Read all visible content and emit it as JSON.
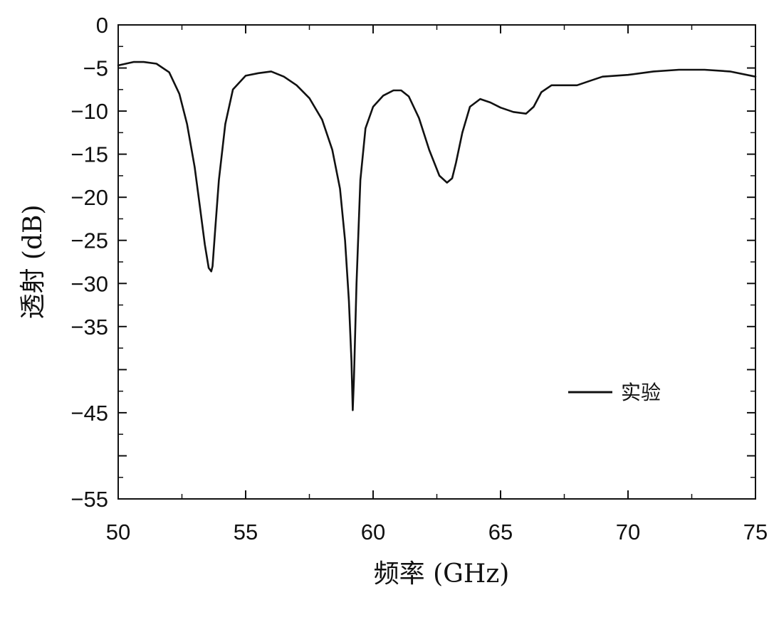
{
  "chart_data": {
    "type": "line",
    "xlabel": "频率 (GHz)",
    "ylabel": "透射 (dB)",
    "xlim": [
      50,
      75
    ],
    "ylim": [
      -55,
      0
    ],
    "x_ticks": [
      50,
      55,
      60,
      65,
      70,
      75
    ],
    "y_ticks": [
      0,
      -5,
      -10,
      -15,
      -20,
      -25,
      -30,
      -35,
      -45,
      -55
    ],
    "y_tick_labels": [
      "0",
      "−5",
      "−10",
      "−15",
      "−20",
      "−25",
      "−30",
      "−35",
      "−45",
      "−55"
    ],
    "grid": false,
    "legend_position": "right",
    "series": [
      {
        "name": "实验",
        "color": "#111111",
        "x": [
          50.0,
          50.3,
          50.6,
          51.0,
          51.5,
          52.0,
          52.4,
          52.7,
          53.0,
          53.2,
          53.4,
          53.55,
          53.65,
          53.7,
          53.8,
          53.95,
          54.2,
          54.5,
          55.0,
          55.5,
          56.0,
          56.5,
          57.0,
          57.5,
          58.0,
          58.4,
          58.7,
          58.9,
          59.05,
          59.15,
          59.2,
          59.25,
          59.35,
          59.5,
          59.7,
          60.0,
          60.4,
          60.8,
          61.1,
          61.4,
          61.8,
          62.2,
          62.6,
          62.9,
          63.1,
          63.25,
          63.5,
          63.8,
          64.2,
          64.6,
          65.0,
          65.5,
          66.0,
          66.3,
          66.6,
          67.0,
          67.5,
          68.0,
          68.5,
          69.0,
          70.0,
          71.0,
          72.0,
          73.0,
          74.0,
          75.0
        ],
        "y": [
          -4.7,
          -4.5,
          -4.3,
          -4.3,
          -4.5,
          -5.5,
          -8.0,
          -11.5,
          -16.5,
          -21.0,
          -25.5,
          -28.2,
          -28.6,
          -28.0,
          -24.0,
          -18.0,
          -11.5,
          -7.5,
          -5.9,
          -5.6,
          -5.4,
          -6.0,
          -7.0,
          -8.5,
          -11.0,
          -14.5,
          -19.0,
          -25.0,
          -32.0,
          -39.0,
          -44.7,
          -41.0,
          -30.0,
          -18.0,
          -12.0,
          -9.5,
          -8.2,
          -7.6,
          -7.6,
          -8.3,
          -10.8,
          -14.5,
          -17.5,
          -18.3,
          -17.8,
          -16.0,
          -12.5,
          -9.5,
          -8.6,
          -9.0,
          -9.6,
          -10.1,
          -10.3,
          -9.5,
          -7.8,
          -7.0,
          -7.0,
          -7.0,
          -6.5,
          -6.0,
          -5.8,
          -5.4,
          -5.2,
          -5.2,
          -5.4,
          -6.0
        ]
      }
    ]
  }
}
